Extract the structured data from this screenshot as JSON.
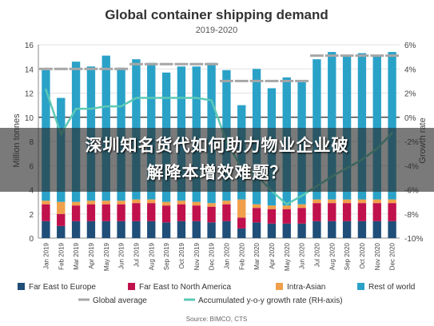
{
  "chart_data": {
    "type": "bar",
    "title": "Global container shipping demand",
    "subtitle": "2019-2020",
    "ylabel": "Million tonnes",
    "ylabel_right": "Growth rate",
    "ylim": [
      0,
      16
    ],
    "ylim_right": [
      -10,
      6
    ],
    "yticks": [
      "0",
      "2",
      "4",
      "6",
      "8",
      "10",
      "12",
      "14",
      "16"
    ],
    "yticks_right": [
      "-10%",
      "-8%",
      "-6%",
      "-4%",
      "-2%",
      "0%",
      "2%",
      "4%",
      "6%"
    ],
    "grid": true,
    "source": "Source: BIMCO, CTS",
    "categories": [
      "Jan 2019",
      "Feb 2019",
      "Mar 2019",
      "Apr 2019",
      "May 2019",
      "Jun 2019",
      "Jul 2019",
      "Aug 2019",
      "Sep 2019",
      "Oct 2019",
      "Nov 2019",
      "Dec 2019",
      "Jan 2020",
      "Feb 2020",
      "Mar 2020",
      "Apr 2020",
      "May 2020",
      "Jun 2020",
      "Jul 2020",
      "Aug 2020",
      "Sep 2020",
      "Oct 2020",
      "Nov 2020",
      "Dec 2020"
    ],
    "series": [
      {
        "name": "Far East to Europe",
        "color": "#1f4e79",
        "values": [
          1.4,
          1.0,
          1.4,
          1.4,
          1.4,
          1.4,
          1.4,
          1.4,
          1.3,
          1.4,
          1.4,
          1.3,
          1.4,
          0.8,
          1.3,
          1.2,
          1.2,
          1.2,
          1.4,
          1.4,
          1.4,
          1.4,
          1.4,
          1.4
        ]
      },
      {
        "name": "Far East to North America",
        "color": "#c0114d",
        "values": [
          1.4,
          1.0,
          1.3,
          1.4,
          1.4,
          1.4,
          1.5,
          1.5,
          1.4,
          1.4,
          1.3,
          1.3,
          1.4,
          0.9,
          1.2,
          1.2,
          1.2,
          1.3,
          1.5,
          1.5,
          1.5,
          1.5,
          1.5,
          1.5
        ]
      },
      {
        "name": "Intra-Asian",
        "color": "#f0a04b",
        "values": [
          0.3,
          1.0,
          0.3,
          0.3,
          0.3,
          0.3,
          0.3,
          0.3,
          0.3,
          0.3,
          0.3,
          0.3,
          0.3,
          1.5,
          0.3,
          0.3,
          0.3,
          0.3,
          0.3,
          0.3,
          0.3,
          0.3,
          0.3,
          0.3
        ]
      },
      {
        "name": "Rest of world",
        "color": "#2aa2c8",
        "values": [
          10.8,
          8.6,
          11.6,
          11.1,
          12.0,
          11.0,
          11.6,
          11.3,
          10.7,
          11.1,
          11.2,
          11.6,
          10.8,
          7.8,
          11.2,
          9.7,
          10.6,
          10.1,
          11.6,
          12.2,
          11.9,
          12.1,
          11.9,
          12.2
        ]
      },
      {
        "name": "Global average",
        "color": "#a6a6a6",
        "values": [
          14.0,
          14.0,
          14.0,
          14.0,
          14.0,
          14.0,
          14.4,
          14.4,
          14.4,
          14.4,
          14.4,
          14.4,
          13.0,
          13.0,
          13.0,
          13.0,
          13.0,
          13.0,
          15.1,
          15.1,
          15.1,
          15.1,
          15.1,
          15.1
        ]
      },
      {
        "name": "Accumulated y-o-y growth rate (RH-axis)",
        "color": "#5cc9b5",
        "values": [
          2.3,
          -1.4,
          0.7,
          0.7,
          0.9,
          0.9,
          1.6,
          1.6,
          1.6,
          1.6,
          1.6,
          1.4,
          -2.0,
          -4.2,
          -4.8,
          -6.1,
          -7.2,
          -6.5,
          -5.7,
          -4.9,
          -4.2,
          -3.5,
          -2.6,
          -1.3
        ]
      }
    ],
    "legend_placement": "bottom"
  },
  "overlay": {
    "line1": "深圳知名货代如何助力物业企业破",
    "line2": "解降本增效难题？"
  }
}
